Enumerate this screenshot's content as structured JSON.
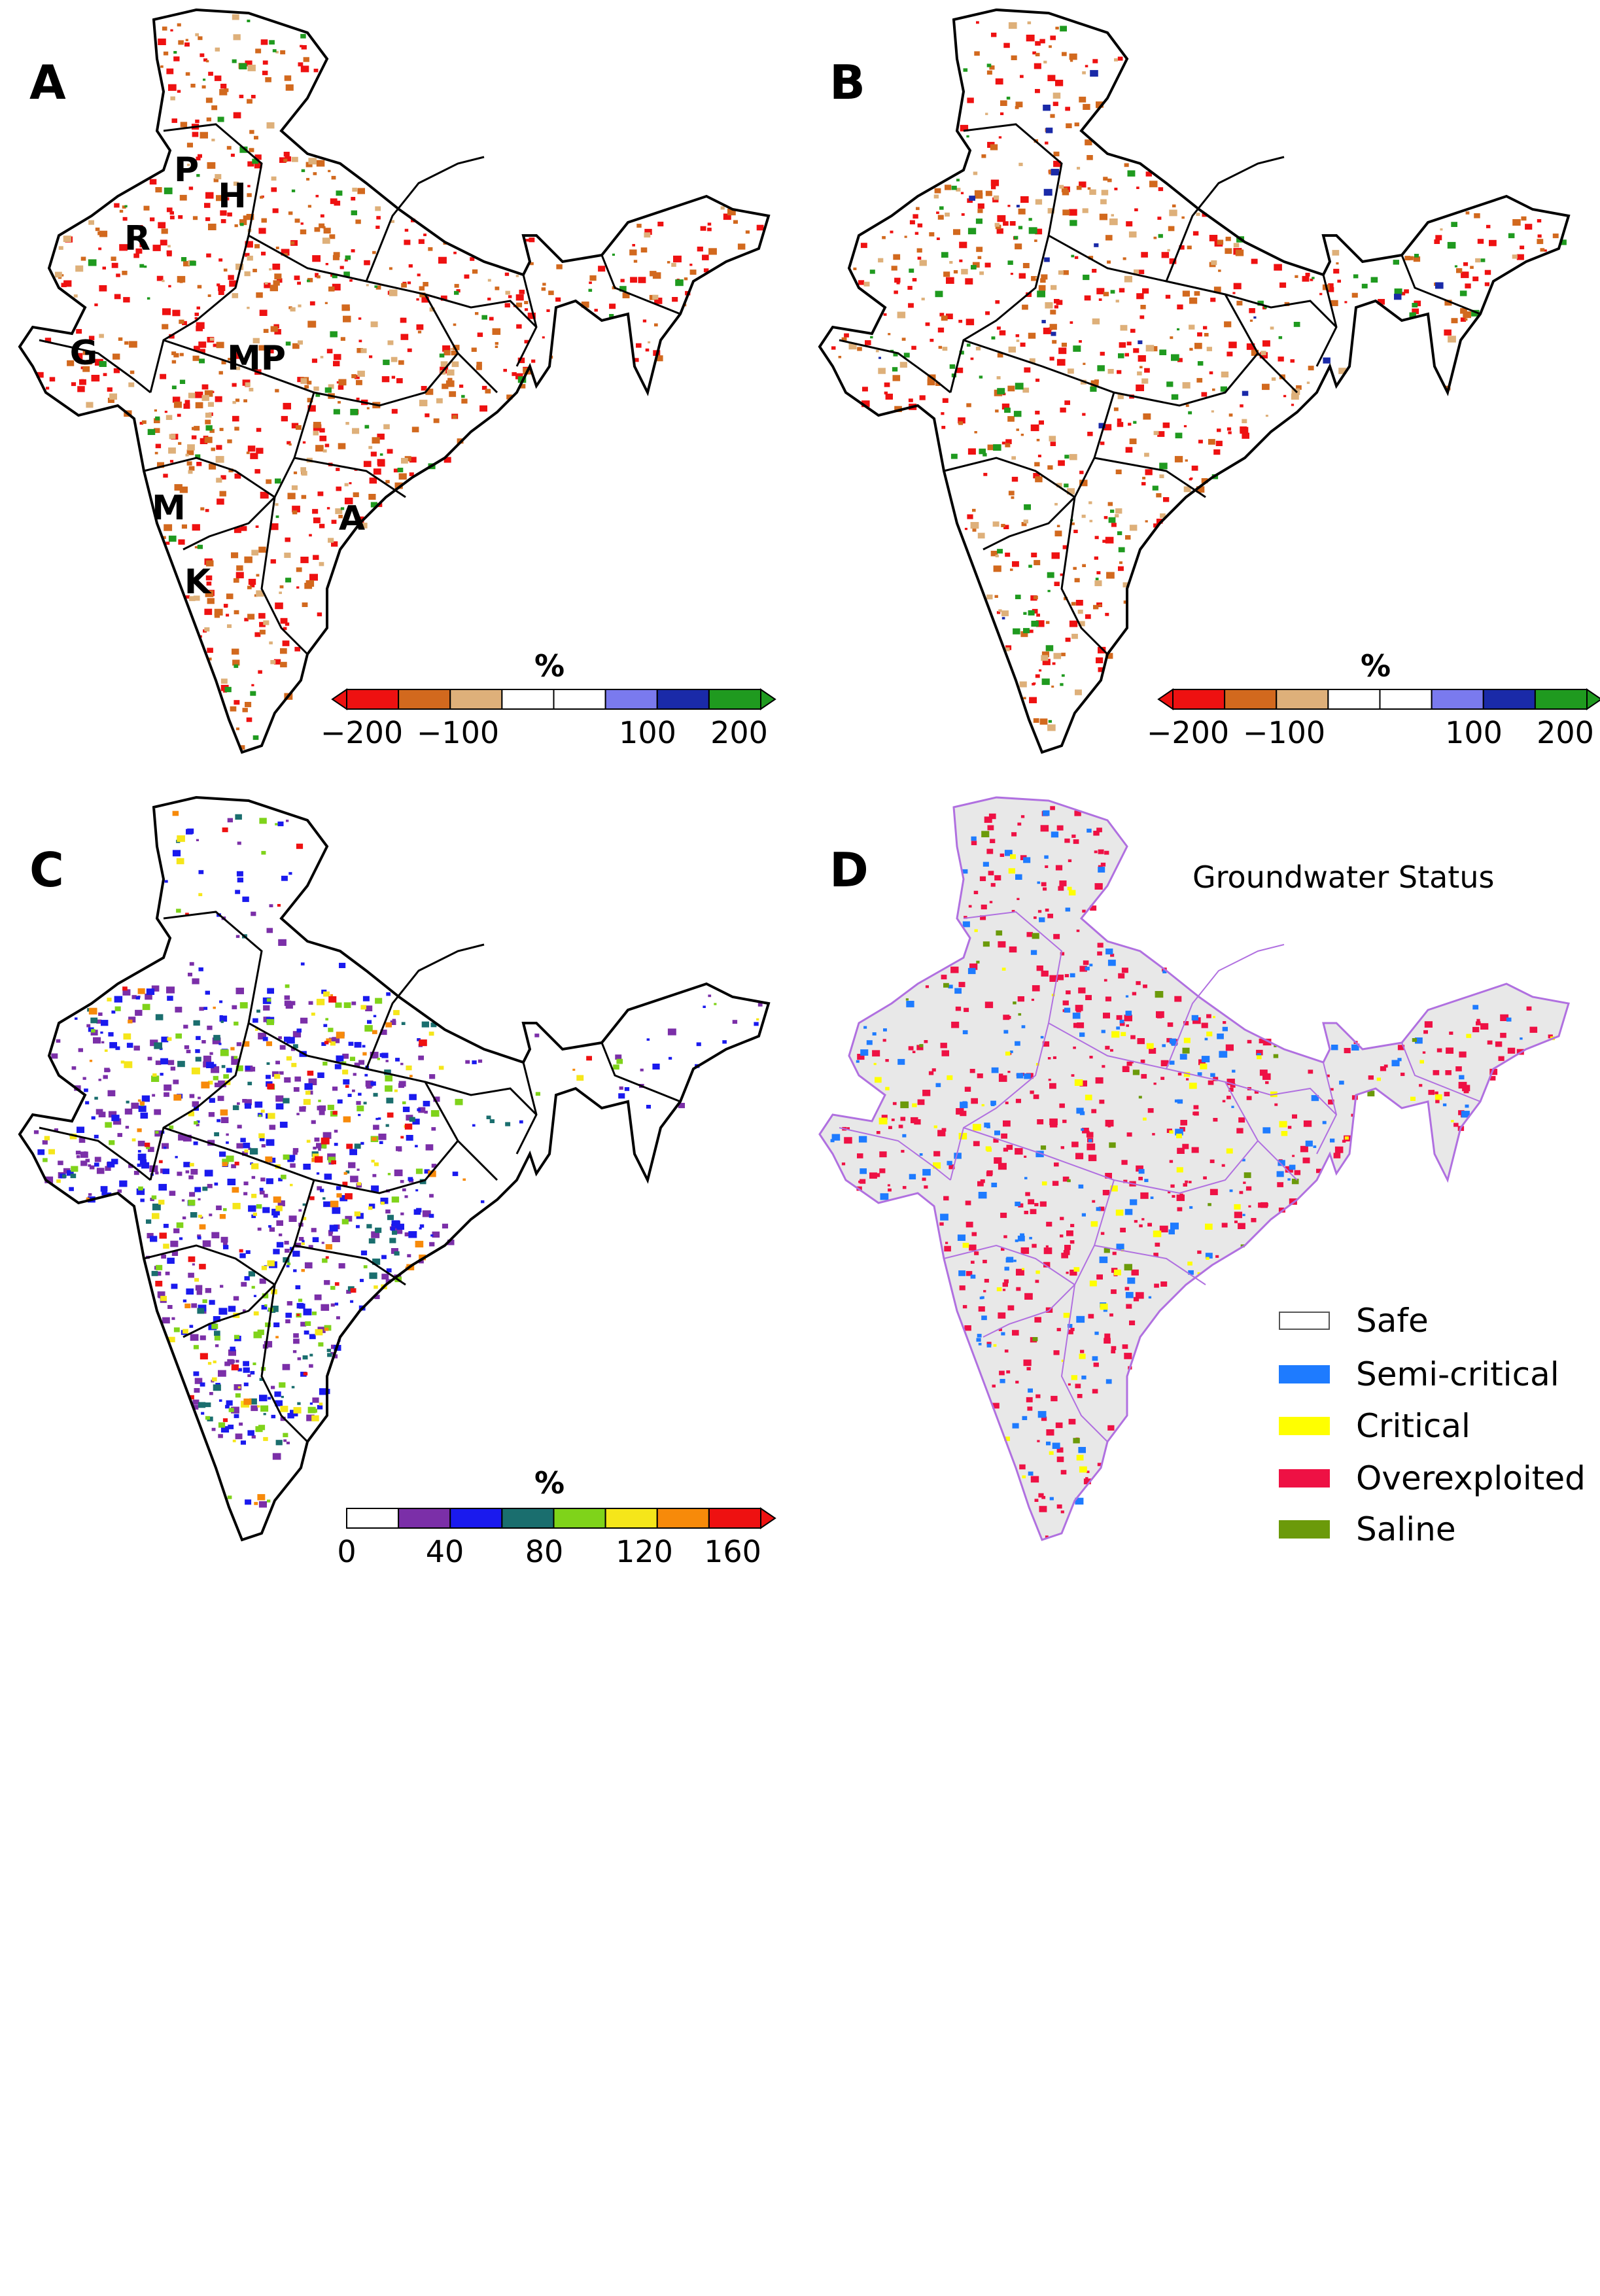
{
  "panels": {
    "A": {
      "label": "A",
      "regions": [
        {
          "name": "P",
          "key": "punjab"
        },
        {
          "name": "H",
          "key": "haryana"
        },
        {
          "name": "R",
          "key": "rajasthan"
        },
        {
          "name": "G",
          "key": "gujarat"
        },
        {
          "name": "MP",
          "key": "madhya-pradesh"
        },
        {
          "name": "M",
          "key": "maharashtra"
        },
        {
          "name": "K",
          "key": "karnataka"
        },
        {
          "name": "A",
          "key": "andhra-pradesh"
        }
      ],
      "colorbar": {
        "title": "%",
        "ticks": [
          "−200",
          "−100",
          "100",
          "200"
        ],
        "colors": [
          "#ee1111",
          "#d2691e",
          "#deb07a",
          "#ffffff",
          "#ffffff",
          "#7a7aee",
          "#1a2aa8",
          "#1f9a1f"
        ],
        "extend_low": "#ee1111",
        "extend_high": "#1f9a1f"
      }
    },
    "B": {
      "label": "B",
      "colorbar": {
        "title": "%",
        "ticks": [
          "−200",
          "−100",
          "100",
          "200"
        ],
        "colors": [
          "#ee1111",
          "#d2691e",
          "#deb07a",
          "#ffffff",
          "#ffffff",
          "#7a7aee",
          "#1a2aa8",
          "#1f9a1f"
        ],
        "extend_low": "#ee1111",
        "extend_high": "#1f9a1f"
      }
    },
    "C": {
      "label": "C",
      "colorbar": {
        "title": "%",
        "ticks": [
          "0",
          "40",
          "80",
          "120",
          "160"
        ],
        "colors": [
          "#ffffff",
          "#7b2fa8",
          "#1a1aee",
          "#1a6e6e",
          "#7fd31a",
          "#f5e61a",
          "#f78a0a",
          "#ee1111"
        ],
        "extend_high": "#ee1111"
      }
    },
    "D": {
      "label": "D",
      "title": "Groundwater Status",
      "legend": [
        {
          "label": "Safe",
          "color": "#ffffff"
        },
        {
          "label": "Semi-critical",
          "color": "#1e7bff"
        },
        {
          "label": "Critical",
          "color": "#ffff00"
        },
        {
          "label": "Overexploited",
          "color": "#ee1144"
        },
        {
          "label": "Saline",
          "color": "#6b9a0a"
        }
      ]
    }
  }
}
